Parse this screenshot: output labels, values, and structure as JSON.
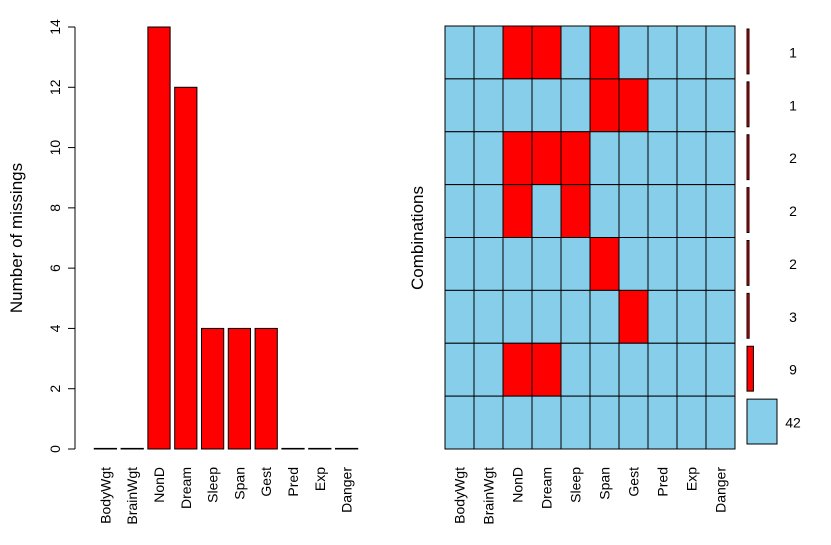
{
  "colors": {
    "missing": "#ff0000",
    "present": "#87ceeb",
    "border": "#000000"
  },
  "chart_data": [
    {
      "type": "bar",
      "categories": [
        "BodyWgt",
        "BrainWgt",
        "NonD",
        "Dream",
        "Sleep",
        "Span",
        "Gest",
        "Pred",
        "Exp",
        "Danger"
      ],
      "values": [
        0,
        0,
        14,
        12,
        4,
        4,
        4,
        0,
        0,
        0
      ],
      "ylabel": "Number of missings",
      "ylim": [
        0,
        14
      ],
      "yticks": [
        "0",
        "2",
        "4",
        "6",
        "8",
        "10",
        "12",
        "14"
      ],
      "grid": false
    },
    {
      "type": "heatmap",
      "ylabel": "Combinations",
      "columns": [
        "BodyWgt",
        "BrainWgt",
        "NonD",
        "Dream",
        "Sleep",
        "Span",
        "Gest",
        "Pred",
        "Exp",
        "Danger"
      ],
      "rows": [
        [
          0,
          0,
          1,
          1,
          0,
          1,
          0,
          0,
          0,
          0
        ],
        [
          0,
          0,
          0,
          0,
          0,
          1,
          1,
          0,
          0,
          0
        ],
        [
          0,
          0,
          1,
          1,
          1,
          0,
          0,
          0,
          0,
          0
        ],
        [
          0,
          0,
          1,
          0,
          1,
          0,
          0,
          0,
          0,
          0
        ],
        [
          0,
          0,
          0,
          0,
          0,
          1,
          0,
          0,
          0,
          0
        ],
        [
          0,
          0,
          0,
          0,
          0,
          0,
          1,
          0,
          0,
          0
        ],
        [
          0,
          0,
          1,
          1,
          0,
          0,
          0,
          0,
          0,
          0
        ],
        [
          0,
          0,
          0,
          0,
          0,
          0,
          0,
          0,
          0,
          0
        ]
      ],
      "counts": [
        "1",
        "1",
        "2",
        "2",
        "2",
        "3",
        "9",
        "42"
      ],
      "count_values": [
        1,
        1,
        2,
        2,
        2,
        3,
        9,
        42
      ]
    }
  ]
}
